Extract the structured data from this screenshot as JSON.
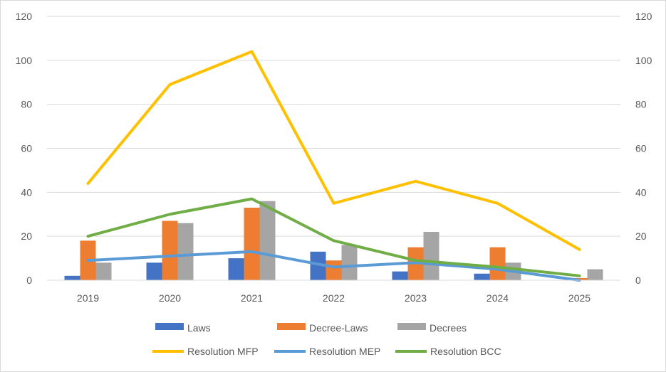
{
  "chart_data": {
    "type": "bar",
    "categories": [
      "2019",
      "2020",
      "2021",
      "2022",
      "2023",
      "2024",
      "2025"
    ],
    "ylim": [
      0,
      120
    ],
    "yticks": [
      0,
      20,
      40,
      60,
      80,
      100,
      120
    ],
    "y2lim": [
      0,
      120
    ],
    "y2ticks": [
      0,
      20,
      40,
      60,
      80,
      100,
      120
    ],
    "grid": true,
    "legend_position": "bottom",
    "bar_series": [
      {
        "name": "Laws",
        "color": "#4472C4",
        "values": [
          2,
          8,
          10,
          13,
          4,
          3,
          0
        ]
      },
      {
        "name": "Decree-Laws",
        "color": "#ED7D31",
        "values": [
          18,
          27,
          33,
          9,
          15,
          15,
          1
        ]
      },
      {
        "name": "Decrees",
        "color": "#A5A5A5",
        "values": [
          8,
          26,
          36,
          16,
          22,
          8,
          5
        ]
      }
    ],
    "line_series": [
      {
        "name": "Resolution MFP",
        "color": "#FFC000",
        "values": [
          44,
          89,
          104,
          35,
          45,
          35,
          14
        ]
      },
      {
        "name": "Resolution MEP",
        "color": "#5B9BD5",
        "values": [
          9,
          11,
          13,
          6,
          8,
          5,
          0
        ]
      },
      {
        "name": "Resolution BCC",
        "color": "#70AD47",
        "values": [
          20,
          30,
          37,
          18,
          9,
          6,
          2
        ]
      }
    ]
  }
}
